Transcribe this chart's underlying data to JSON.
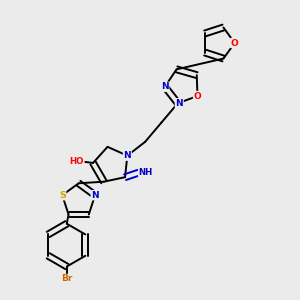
{
  "background_color": "#ebebeb",
  "bond_color": "#000000",
  "atom_colors": {
    "N": "#0000cd",
    "O": "#ff0000",
    "S": "#ccaa00",
    "Br": "#cc6600",
    "C": "#000000",
    "H": "#008080"
  }
}
